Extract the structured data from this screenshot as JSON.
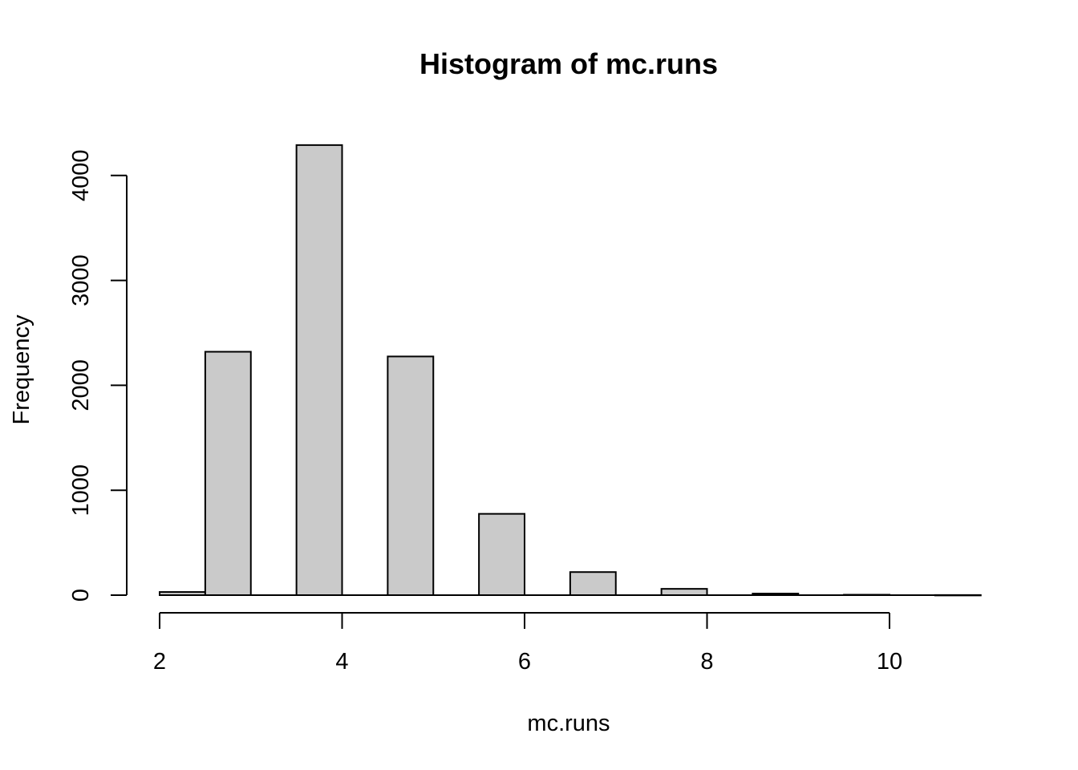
{
  "chart_data": {
    "type": "bar",
    "title": "Histogram of mc.runs",
    "xlabel": "mc.runs",
    "ylabel": "Frequency",
    "bin_width": 0.5,
    "bars": [
      {
        "x0": 2.0,
        "x1": 2.5,
        "value": 30
      },
      {
        "x0": 2.5,
        "x1": 3.0,
        "value": 2320
      },
      {
        "x0": 3.0,
        "x1": 3.5,
        "value": 0
      },
      {
        "x0": 3.5,
        "x1": 4.0,
        "value": 4290
      },
      {
        "x0": 4.0,
        "x1": 4.5,
        "value": 0
      },
      {
        "x0": 4.5,
        "x1": 5.0,
        "value": 2275
      },
      {
        "x0": 5.0,
        "x1": 5.5,
        "value": 0
      },
      {
        "x0": 5.5,
        "x1": 6.0,
        "value": 775
      },
      {
        "x0": 6.0,
        "x1": 6.5,
        "value": 0
      },
      {
        "x0": 6.5,
        "x1": 7.0,
        "value": 220
      },
      {
        "x0": 7.0,
        "x1": 7.5,
        "value": 0
      },
      {
        "x0": 7.5,
        "x1": 8.0,
        "value": 60
      },
      {
        "x0": 8.0,
        "x1": 8.5,
        "value": 0
      },
      {
        "x0": 8.5,
        "x1": 9.0,
        "value": 15
      },
      {
        "x0": 9.0,
        "x1": 9.5,
        "value": 0
      },
      {
        "x0": 9.5,
        "x1": 10.0,
        "value": 4
      },
      {
        "x0": 10.0,
        "x1": 10.5,
        "value": 0
      },
      {
        "x0": 10.5,
        "x1": 11.0,
        "value": 1
      }
    ],
    "x_ticks": [
      2,
      4,
      6,
      8,
      10
    ],
    "x_tick_labels": [
      "2",
      "4",
      "6",
      "8",
      "10"
    ],
    "y_ticks": [
      0,
      1000,
      2000,
      3000,
      4000
    ],
    "y_tick_labels": [
      "0",
      "1000",
      "2000",
      "3000",
      "4000"
    ],
    "xlim": [
      2,
      11
    ],
    "ylim": [
      0,
      4290
    ],
    "bar_fill": "#cacaca",
    "grid": false
  }
}
